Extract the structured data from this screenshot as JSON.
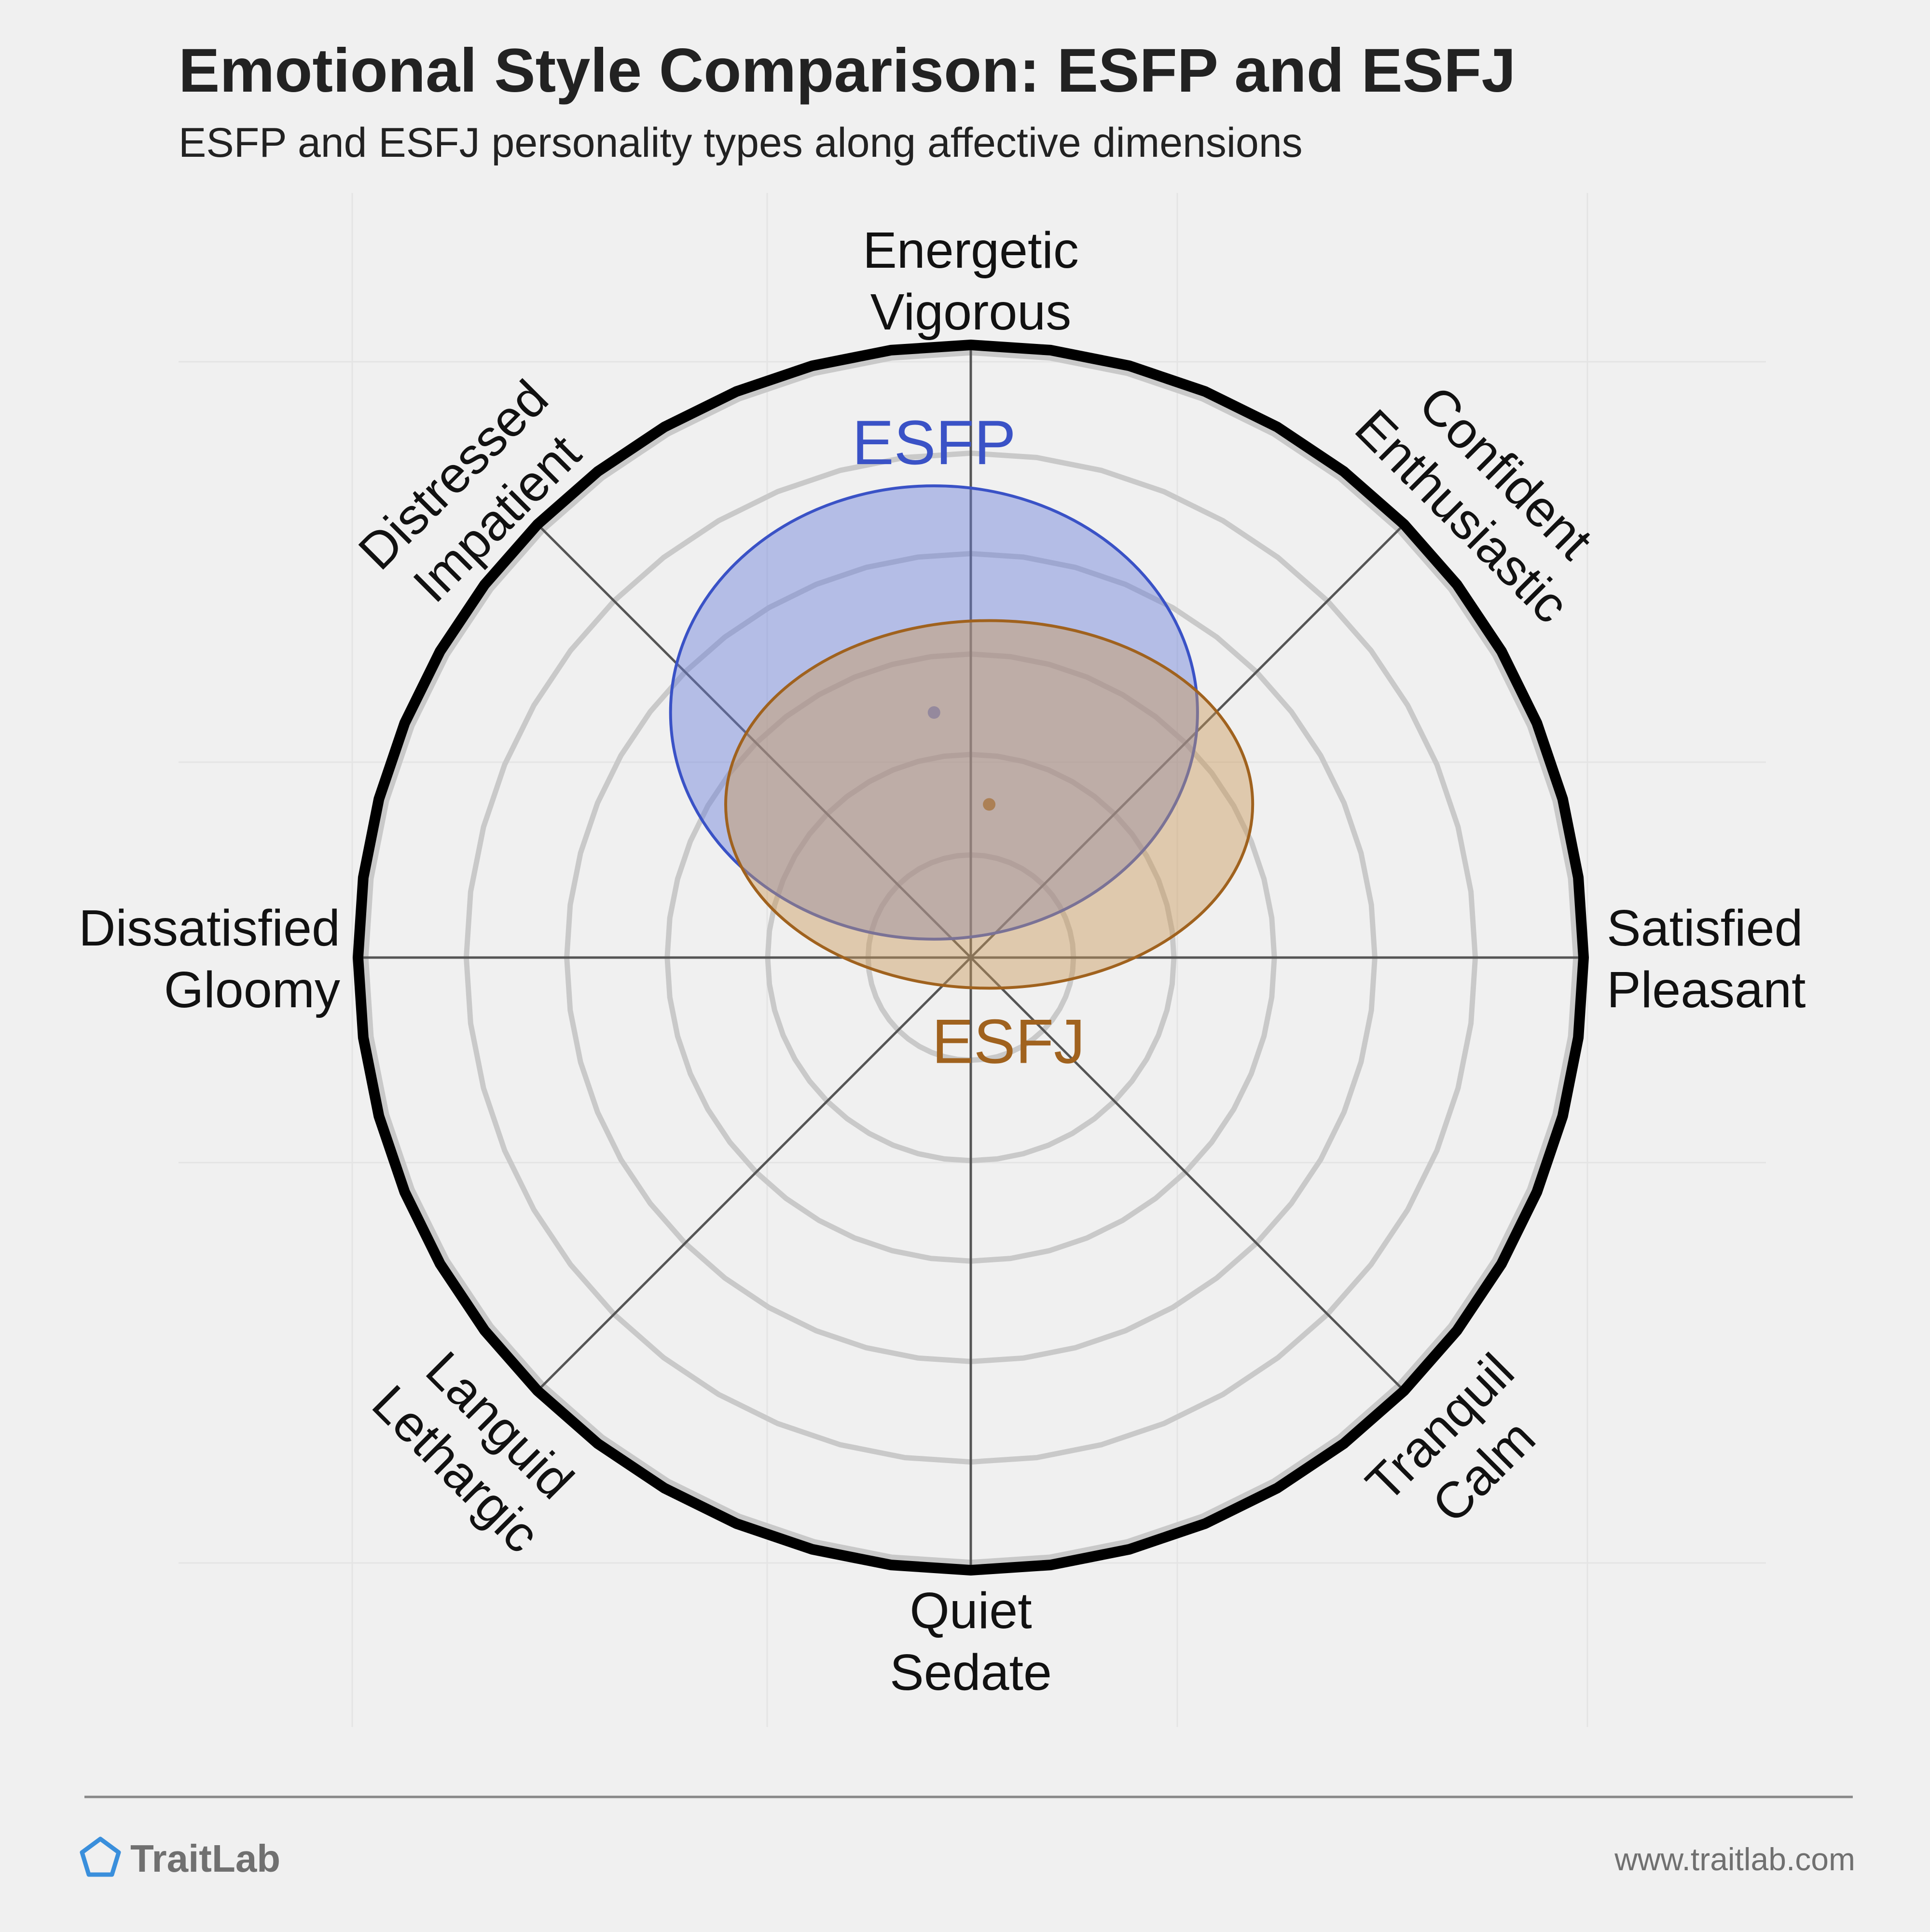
{
  "title": "Emotional Style Comparison: ESFP and ESFJ",
  "subtitle": "ESFP and ESFJ personality types along affective dimensions",
  "chart_data": {
    "type": "scatter",
    "subtype": "circumplex",
    "rings": 6,
    "grid": true,
    "axes": [
      {
        "name": "energetic",
        "lines": [
          "Energetic",
          "Vigorous"
        ]
      },
      {
        "name": "confident",
        "lines": [
          "Confident",
          "Enthusiastic"
        ]
      },
      {
        "name": "satisfied",
        "lines": [
          "Satisfied",
          "Pleasant"
        ]
      },
      {
        "name": "tranquil",
        "lines": [
          "Tranquil",
          "Calm"
        ]
      },
      {
        "name": "quiet",
        "lines": [
          "Quiet",
          "Sedate"
        ]
      },
      {
        "name": "languid",
        "lines": [
          "Languid",
          "Lethargic"
        ]
      },
      {
        "name": "dissatisfied",
        "lines": [
          "Dissatisfied",
          "Gloomy"
        ]
      },
      {
        "name": "distressed",
        "lines": [
          "Distressed",
          "Impatient"
        ]
      }
    ],
    "series": [
      {
        "name": "ESFP",
        "color": "#3a52c6",
        "fill": "#6a7fda",
        "x": -0.06,
        "y": 0.4,
        "sx": 0.43,
        "sy": 0.37
      },
      {
        "name": "ESFJ",
        "color": "#a0621e",
        "fill": "#c99a5a",
        "x": 0.03,
        "y": 0.25,
        "sx": 0.43,
        "sy": 0.3
      }
    ],
    "xlim": [
      -1,
      1
    ],
    "ylim": [
      -1,
      1
    ]
  },
  "footer": {
    "brand": "TraitLab",
    "url": "www.traitlab.com"
  },
  "colors": {
    "background": "#f0f0f0",
    "title": "#222222",
    "brand": "#3a8fdc",
    "muted": "#707070"
  }
}
